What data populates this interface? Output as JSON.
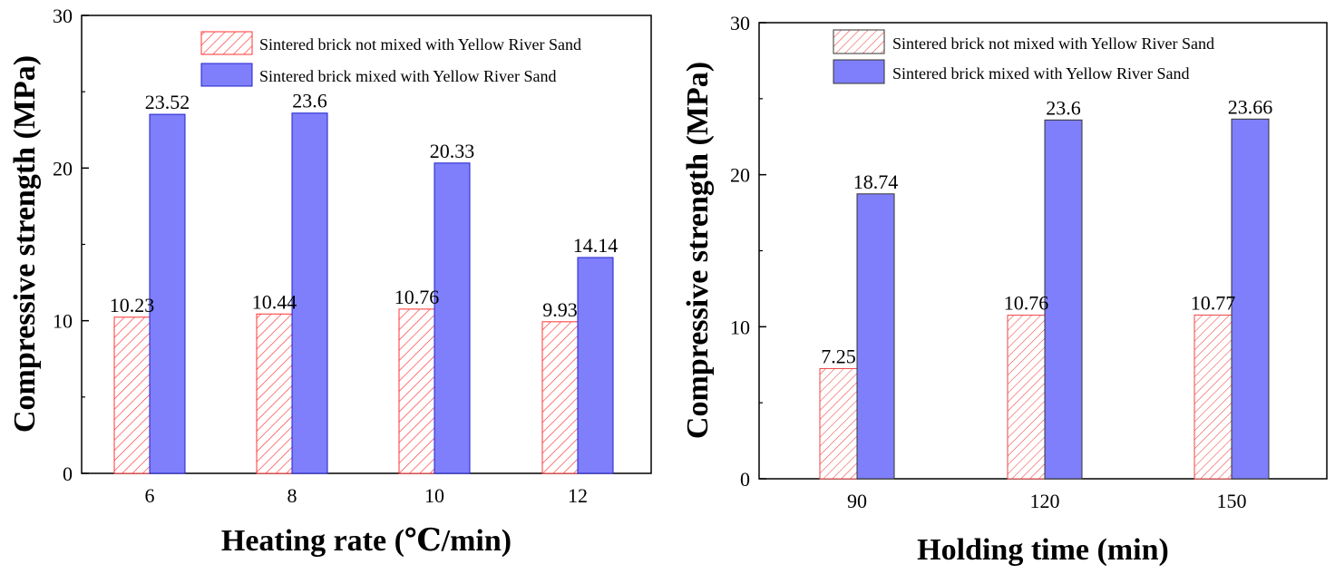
{
  "colors": {
    "series_not_mixed_stroke": "#ff3333",
    "series_not_mixed_fill": "#ffffff",
    "series_mixed_fill": "#7f7ffb",
    "series_mixed_stroke": "#2222cc",
    "axis": "#000000"
  },
  "chart_data": [
    {
      "type": "bar",
      "xlabel": "Heating rate (℃/min)",
      "ylabel": "Compressive strength (MPa)",
      "ylim": [
        0,
        30
      ],
      "yticks": [
        "0",
        "10",
        "20",
        "30"
      ],
      "categories": [
        "6",
        "8",
        "10",
        "12"
      ],
      "legend_position": "top-right",
      "series": [
        {
          "name": "Sintered brick not mixed with Yellow River Sand",
          "values": [
            10.23,
            10.44,
            10.76,
            9.93
          ],
          "labels": [
            "10.23",
            "10.44",
            "10.76",
            "9.93"
          ]
        },
        {
          "name": "Sintered brick mixed with Yellow River Sand",
          "values": [
            23.52,
            23.6,
            20.33,
            14.14
          ],
          "labels": [
            "23.52",
            "23.6",
            "20.33",
            "14.14"
          ]
        }
      ]
    },
    {
      "type": "bar",
      "xlabel": "Holding time (min)",
      "ylabel": "Compressive strength (MPa)",
      "ylim": [
        0,
        30
      ],
      "yticks": [
        "0",
        "10",
        "20",
        "30"
      ],
      "categories": [
        "90",
        "120",
        "150"
      ],
      "legend_position": "top-right",
      "series": [
        {
          "name": "Sintered brick not mixed with Yellow River Sand",
          "values": [
            7.25,
            10.76,
            10.77
          ],
          "labels": [
            "7.25",
            "10.76",
            "10.77"
          ]
        },
        {
          "name": "Sintered brick mixed with Yellow River Sand",
          "values": [
            18.74,
            23.6,
            23.66
          ],
          "labels": [
            "18.74",
            "23.6",
            "23.66"
          ]
        }
      ]
    }
  ]
}
